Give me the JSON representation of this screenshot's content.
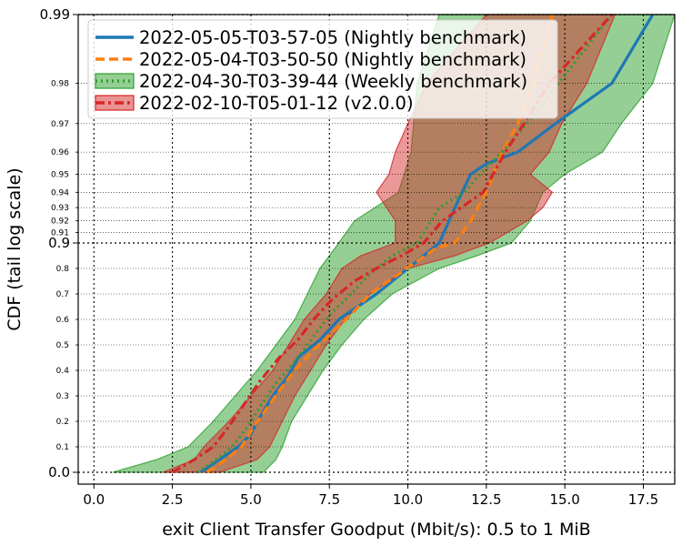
{
  "chart_data": {
    "type": "line",
    "title": "",
    "xlabel": "exit Client Transfer Goodput (Mbit/s): 0.5 to 1 MiB",
    "ylabel": "CDF (tail log scale)",
    "xlim": [
      -0.5,
      18.5
    ],
    "x_ticks": [
      0,
      2.5,
      5,
      7.5,
      10,
      12.5,
      15,
      17.5
    ],
    "x_tick_labels": [
      "0.0",
      "2.5",
      "5.0",
      "7.5",
      "10.0",
      "12.5",
      "15.0",
      "17.5"
    ],
    "y_scale": "linear below 0.9, log tail above 0.9",
    "y_major_ticks": [
      0.0,
      0.9,
      0.99
    ],
    "y_major_labels": [
      "0.0",
      "0.9",
      "0.99"
    ],
    "y_minor_ticks": [
      0.1,
      0.2,
      0.3,
      0.4,
      0.5,
      0.6,
      0.7,
      0.8,
      0.91,
      0.92,
      0.93,
      0.94,
      0.95,
      0.96,
      0.97,
      0.98
    ],
    "y_minor_labels": [
      "0.1",
      "0.2",
      "0.3",
      "0.4",
      "0.5",
      "0.6",
      "0.7",
      "0.8",
      "0.91",
      "0.92",
      "0.93",
      "0.94",
      "0.95",
      "0.96",
      "0.97",
      "0.98"
    ],
    "grid": true,
    "legend_position": "top-left",
    "series": [
      {
        "name": "2022-05-05-T03-57-05 (Nightly benchmark)",
        "color": "#1f77b4",
        "style": "solid",
        "points": [
          [
            3.4,
            0.0
          ],
          [
            4.0,
            0.05
          ],
          [
            4.6,
            0.1
          ],
          [
            5.0,
            0.15
          ],
          [
            5.3,
            0.22
          ],
          [
            5.7,
            0.3
          ],
          [
            6.2,
            0.38
          ],
          [
            6.5,
            0.45
          ],
          [
            7.2,
            0.52
          ],
          [
            7.8,
            0.6
          ],
          [
            8.4,
            0.65
          ],
          [
            9.0,
            0.7
          ],
          [
            9.5,
            0.75
          ],
          [
            10.0,
            0.8
          ],
          [
            10.5,
            0.85
          ],
          [
            11.0,
            0.9
          ],
          [
            11.5,
            0.93
          ],
          [
            12.0,
            0.95
          ],
          [
            12.5,
            0.955
          ],
          [
            13.5,
            0.96
          ],
          [
            14.7,
            0.97
          ],
          [
            16.5,
            0.98
          ],
          [
            17.8,
            0.99
          ]
        ]
      },
      {
        "name": "2022-05-04-T03-50-50 (Nightly benchmark)",
        "color": "#ff7f0e",
        "style": "dashed",
        "points": [
          [
            3.6,
            0.0
          ],
          [
            4.2,
            0.05
          ],
          [
            4.7,
            0.1
          ],
          [
            5.1,
            0.18
          ],
          [
            5.5,
            0.25
          ],
          [
            5.9,
            0.32
          ],
          [
            6.4,
            0.4
          ],
          [
            7.0,
            0.48
          ],
          [
            7.6,
            0.55
          ],
          [
            8.2,
            0.62
          ],
          [
            8.8,
            0.7
          ],
          [
            9.5,
            0.76
          ],
          [
            10.2,
            0.82
          ],
          [
            10.9,
            0.88
          ],
          [
            11.5,
            0.9
          ],
          [
            12.0,
            0.92
          ],
          [
            12.5,
            0.94
          ],
          [
            13.0,
            0.96
          ],
          [
            13.5,
            0.97
          ],
          [
            14.0,
            0.98
          ],
          [
            14.6,
            0.99
          ]
        ]
      },
      {
        "name": "2022-04-30-T03-39-44 (Weekly benchmark)",
        "color": "#2ca02c",
        "style": "dotted",
        "points": [
          [
            3.3,
            0.0
          ],
          [
            3.9,
            0.05
          ],
          [
            4.4,
            0.1
          ],
          [
            4.9,
            0.18
          ],
          [
            5.3,
            0.26
          ],
          [
            5.8,
            0.35
          ],
          [
            6.5,
            0.45
          ],
          [
            7.1,
            0.55
          ],
          [
            7.6,
            0.63
          ],
          [
            8.2,
            0.7
          ],
          [
            8.8,
            0.78
          ],
          [
            9.5,
            0.85
          ],
          [
            10.3,
            0.9
          ],
          [
            11.0,
            0.93
          ],
          [
            11.8,
            0.94
          ],
          [
            12.3,
            0.95
          ],
          [
            13.0,
            0.96
          ],
          [
            13.8,
            0.97
          ],
          [
            14.8,
            0.98
          ],
          [
            16.5,
            0.99
          ]
        ]
      },
      {
        "name": "2022-02-10-T05-01-12 (v2.0.0)",
        "color": "#d62728",
        "style": "dashdot",
        "points": [
          [
            2.5,
            0.0
          ],
          [
            3.2,
            0.05
          ],
          [
            3.8,
            0.1
          ],
          [
            4.3,
            0.18
          ],
          [
            4.8,
            0.27
          ],
          [
            5.3,
            0.36
          ],
          [
            5.9,
            0.45
          ],
          [
            6.5,
            0.52
          ],
          [
            7.0,
            0.6
          ],
          [
            7.6,
            0.68
          ],
          [
            8.3,
            0.75
          ],
          [
            9.0,
            0.8
          ],
          [
            9.8,
            0.85
          ],
          [
            10.5,
            0.9
          ],
          [
            11.1,
            0.92
          ],
          [
            11.7,
            0.93
          ],
          [
            12.4,
            0.94
          ],
          [
            13.1,
            0.96
          ],
          [
            13.7,
            0.97
          ],
          [
            14.5,
            0.98
          ],
          [
            16.5,
            0.99
          ]
        ]
      }
    ],
    "bands": [
      {
        "series": "2022-04-30-T03-39-44 (Weekly benchmark)",
        "color": "#2ca02c",
        "lower": [
          [
            0.6,
            0.0
          ],
          [
            2.0,
            0.05
          ],
          [
            3.0,
            0.1
          ],
          [
            3.8,
            0.2
          ],
          [
            4.5,
            0.3
          ],
          [
            5.2,
            0.4
          ],
          [
            5.8,
            0.5
          ],
          [
            6.4,
            0.6
          ],
          [
            6.8,
            0.7
          ],
          [
            7.2,
            0.8
          ],
          [
            7.8,
            0.9
          ],
          [
            8.3,
            0.92
          ],
          [
            9.7,
            0.94
          ],
          [
            10.1,
            0.96
          ],
          [
            10.3,
            0.98
          ],
          [
            11.0,
            0.99
          ]
        ],
        "upper": [
          [
            5.4,
            0.0
          ],
          [
            5.8,
            0.05
          ],
          [
            6.0,
            0.1
          ],
          [
            6.3,
            0.2
          ],
          [
            6.8,
            0.3
          ],
          [
            7.3,
            0.4
          ],
          [
            7.9,
            0.5
          ],
          [
            8.6,
            0.6
          ],
          [
            9.5,
            0.7
          ],
          [
            11.0,
            0.8
          ],
          [
            12.2,
            0.85
          ],
          [
            13.3,
            0.9
          ],
          [
            13.9,
            0.92
          ],
          [
            14.3,
            0.94
          ],
          [
            15.0,
            0.95
          ],
          [
            16.2,
            0.96
          ],
          [
            16.8,
            0.97
          ],
          [
            17.8,
            0.98
          ],
          [
            18.5,
            0.99
          ]
        ]
      },
      {
        "series": "2022-02-10-T05-01-12 (v2.0.0)",
        "color": "#d62728",
        "lower": [
          [
            2.2,
            0.0
          ],
          [
            3.2,
            0.05
          ],
          [
            3.5,
            0.1
          ],
          [
            4.3,
            0.2
          ],
          [
            5.0,
            0.3
          ],
          [
            5.7,
            0.4
          ],
          [
            6.2,
            0.5
          ],
          [
            6.7,
            0.6
          ],
          [
            7.4,
            0.7
          ],
          [
            7.9,
            0.8
          ],
          [
            8.5,
            0.85
          ],
          [
            9.6,
            0.9
          ],
          [
            9.6,
            0.92
          ],
          [
            9.0,
            0.94
          ],
          [
            9.4,
            0.95
          ],
          [
            9.6,
            0.96
          ],
          [
            10.0,
            0.97
          ],
          [
            10.6,
            0.98
          ],
          [
            12.5,
            0.99
          ]
        ],
        "upper": [
          [
            4.0,
            0.0
          ],
          [
            5.2,
            0.05
          ],
          [
            5.6,
            0.1
          ],
          [
            6.0,
            0.2
          ],
          [
            6.4,
            0.3
          ],
          [
            6.9,
            0.4
          ],
          [
            7.4,
            0.5
          ],
          [
            8.0,
            0.6
          ],
          [
            8.8,
            0.7
          ],
          [
            10.0,
            0.8
          ],
          [
            11.5,
            0.85
          ],
          [
            12.6,
            0.9
          ],
          [
            13.8,
            0.92
          ],
          [
            14.3,
            0.93
          ],
          [
            14.6,
            0.94
          ],
          [
            13.9,
            0.95
          ],
          [
            14.5,
            0.96
          ],
          [
            14.9,
            0.97
          ],
          [
            15.7,
            0.98
          ],
          [
            16.6,
            0.99
          ]
        ]
      }
    ]
  }
}
